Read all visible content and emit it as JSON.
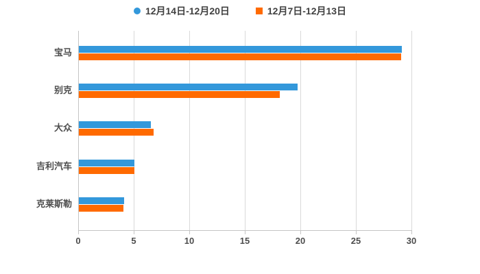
{
  "chart_data": {
    "type": "bar",
    "orientation": "horizontal",
    "title": "",
    "categories": [
      "宝马",
      "别克",
      "大众",
      "吉利汽车",
      "克莱斯勒"
    ],
    "series": [
      {
        "name": "12月14日-12月20日",
        "color": "#3398db",
        "marker": "circle",
        "values": [
          29.1,
          19.7,
          6.5,
          5.0,
          4.1
        ]
      },
      {
        "name": "12月7日-12月13日",
        "color": "#ff6a00",
        "marker": "square",
        "values": [
          29.0,
          18.1,
          6.7,
          5.0,
          4.0
        ]
      }
    ],
    "xlim": [
      0,
      30
    ],
    "xticks": [
      "0",
      "5",
      "10",
      "15",
      "20",
      "25",
      "30"
    ],
    "grid": true,
    "legend_position": "top",
    "background_color": "#ffffff",
    "gridline_color": "#d9d9d9",
    "axis_line_color": "#c4c4c4",
    "axis_text_color": "#4d4d4d"
  }
}
